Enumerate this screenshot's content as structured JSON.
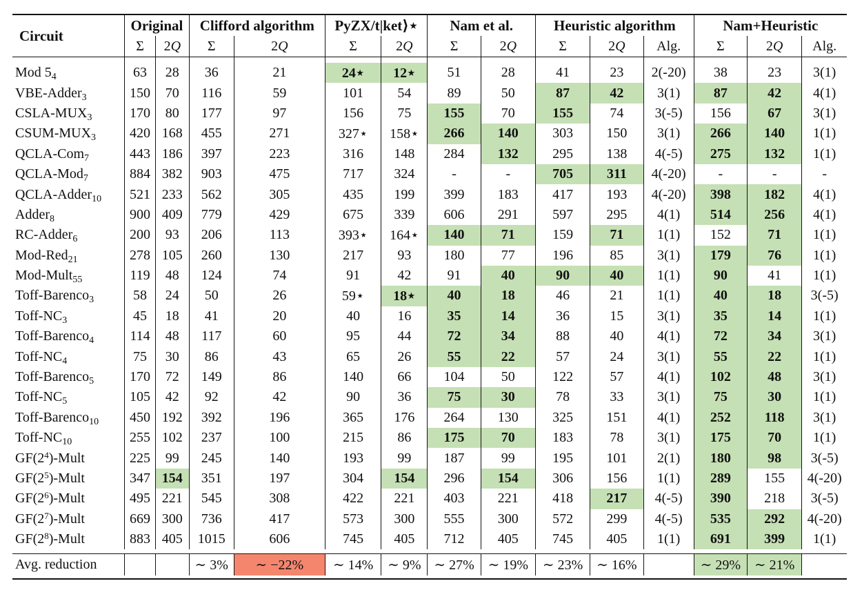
{
  "headers": {
    "circuit": "Circuit",
    "groups": [
      "Original",
      "Clifford algorithm",
      "PyZX/t|ket⟩⋆",
      "Nam et al.",
      "Heuristic algorithm",
      "Nam+Heuristic"
    ],
    "sigma": "Σ",
    "two_q_num": "2",
    "two_q_q": "Q",
    "alg": "Alg."
  },
  "rows": [
    {
      "name": "Mod 5",
      "sub": "4",
      "vals": [
        "63",
        "28",
        "36",
        "21",
        "24⋆",
        "12⋆",
        "51",
        "28",
        "41",
        "23",
        "2(-20)",
        "38",
        "23",
        "3(1)"
      ],
      "hl": [
        4,
        5
      ],
      "bold": [
        4,
        5
      ]
    },
    {
      "name": "VBE-Adder",
      "sub": "3",
      "vals": [
        "150",
        "70",
        "116",
        "59",
        "101",
        "54",
        "89",
        "50",
        "87",
        "42",
        "3(1)",
        "87",
        "42",
        "4(1)"
      ],
      "hl": [
        8,
        9,
        11,
        12
      ],
      "bold": [
        8,
        9,
        11,
        12
      ]
    },
    {
      "name": "CSLA-MUX",
      "sub": "3",
      "vals": [
        "170",
        "80",
        "177",
        "97",
        "156",
        "75",
        "155",
        "70",
        "155",
        "74",
        "3(-5)",
        "156",
        "67",
        "3(1)"
      ],
      "hl": [
        6,
        8,
        12
      ],
      "bold": [
        6,
        8,
        12
      ]
    },
    {
      "name": "CSUM-MUX",
      "sub": "3",
      "vals": [
        "420",
        "168",
        "455",
        "271",
        "327⋆",
        "158⋆",
        "266",
        "140",
        "303",
        "150",
        "3(1)",
        "266",
        "140",
        "1(1)"
      ],
      "hl": [
        6,
        7,
        11,
        12
      ],
      "bold": [
        6,
        7,
        11,
        12
      ]
    },
    {
      "name": "QCLA-Com",
      "sub": "7",
      "vals": [
        "443",
        "186",
        "397",
        "223",
        "316",
        "148",
        "284",
        "132",
        "295",
        "138",
        "4(-5)",
        "275",
        "132",
        "1(1)"
      ],
      "hl": [
        7,
        11,
        12
      ],
      "bold": [
        7,
        11,
        12
      ]
    },
    {
      "name": "QCLA-Mod",
      "sub": "7",
      "vals": [
        "884",
        "382",
        "903",
        "475",
        "717",
        "324",
        "-",
        "-",
        "705",
        "311",
        "4(-20)",
        "-",
        "-",
        "-"
      ],
      "hl": [
        8,
        9
      ],
      "bold": [
        8,
        9
      ]
    },
    {
      "name": "QCLA-Adder",
      "sub": "10",
      "vals": [
        "521",
        "233",
        "562",
        "305",
        "435",
        "199",
        "399",
        "183",
        "417",
        "193",
        "4(-20)",
        "398",
        "182",
        "4(1)"
      ],
      "hl": [
        11,
        12
      ],
      "bold": [
        11,
        12
      ]
    },
    {
      "name": "Adder",
      "sub": "8",
      "vals": [
        "900",
        "409",
        "779",
        "429",
        "675",
        "339",
        "606",
        "291",
        "597",
        "295",
        "4(1)",
        "514",
        "256",
        "4(1)"
      ],
      "hl": [
        11,
        12
      ],
      "bold": [
        11,
        12
      ]
    },
    {
      "name": "RC-Adder",
      "sub": "6",
      "vals": [
        "200",
        "93",
        "206",
        "113",
        "393⋆",
        "164⋆",
        "140",
        "71",
        "159",
        "71",
        "1(1)",
        "152",
        "71",
        "1(1)"
      ],
      "hl": [
        6,
        7,
        9,
        12
      ],
      "bold": [
        6,
        7,
        9,
        12
      ]
    },
    {
      "name": "Mod-Red",
      "sub": "21",
      "vals": [
        "278",
        "105",
        "260",
        "130",
        "217",
        "93",
        "180",
        "77",
        "196",
        "85",
        "3(1)",
        "179",
        "76",
        "1(1)"
      ],
      "hl": [
        11,
        12
      ],
      "bold": [
        11,
        12
      ]
    },
    {
      "name": "Mod-Mult",
      "sub": "55",
      "vals": [
        "119",
        "48",
        "124",
        "74",
        "91",
        "42",
        "91",
        "40",
        "90",
        "40",
        "1(1)",
        "90",
        "41",
        "1(1)"
      ],
      "hl": [
        7,
        8,
        9,
        11
      ],
      "bold": [
        7,
        8,
        9,
        11
      ]
    },
    {
      "name": "Toff-Barenco",
      "sub": "3",
      "vals": [
        "58",
        "24",
        "50",
        "26",
        "59⋆",
        "18⋆",
        "40",
        "18",
        "46",
        "21",
        "1(1)",
        "40",
        "18",
        "3(-5)"
      ],
      "hl": [
        5,
        6,
        7,
        11,
        12
      ],
      "bold": [
        5,
        6,
        7,
        11,
        12
      ]
    },
    {
      "name": "Toff-NC",
      "sub": "3",
      "vals": [
        "45",
        "18",
        "41",
        "20",
        "40",
        "16",
        "35",
        "14",
        "36",
        "15",
        "3(1)",
        "35",
        "14",
        "1(1)"
      ],
      "hl": [
        6,
        7,
        11,
        12
      ],
      "bold": [
        6,
        7,
        11,
        12
      ]
    },
    {
      "name": "Toff-Barenco",
      "sub": "4",
      "vals": [
        "114",
        "48",
        "117",
        "60",
        "95",
        "44",
        "72",
        "34",
        "88",
        "40",
        "4(1)",
        "72",
        "34",
        "3(1)"
      ],
      "hl": [
        6,
        7,
        11,
        12
      ],
      "bold": [
        6,
        7,
        11,
        12
      ]
    },
    {
      "name": "Toff-NC",
      "sub": "4",
      "vals": [
        "75",
        "30",
        "86",
        "43",
        "65",
        "26",
        "55",
        "22",
        "57",
        "24",
        "3(1)",
        "55",
        "22",
        "1(1)"
      ],
      "hl": [
        6,
        7,
        11,
        12
      ],
      "bold": [
        6,
        7,
        11,
        12
      ]
    },
    {
      "name": "Toff-Barenco",
      "sub": "5",
      "vals": [
        "170",
        "72",
        "149",
        "86",
        "140",
        "66",
        "104",
        "50",
        "122",
        "57",
        "4(1)",
        "102",
        "48",
        "3(1)"
      ],
      "hl": [
        11,
        12
      ],
      "bold": [
        11,
        12
      ]
    },
    {
      "name": "Toff-NC",
      "sub": "5",
      "vals": [
        "105",
        "42",
        "92",
        "42",
        "90",
        "36",
        "75",
        "30",
        "78",
        "33",
        "3(1)",
        "75",
        "30",
        "1(1)"
      ],
      "hl": [
        6,
        7,
        11,
        12
      ],
      "bold": [
        6,
        7,
        11,
        12
      ]
    },
    {
      "name": "Toff-Barenco",
      "sub": "10",
      "vals": [
        "450",
        "192",
        "392",
        "196",
        "365",
        "176",
        "264",
        "130",
        "325",
        "151",
        "4(1)",
        "252",
        "118",
        "3(1)"
      ],
      "hl": [
        11,
        12
      ],
      "bold": [
        11,
        12
      ]
    },
    {
      "name": "Toff-NC",
      "sub": "10",
      "vals": [
        "255",
        "102",
        "237",
        "100",
        "215",
        "86",
        "175",
        "70",
        "183",
        "78",
        "3(1)",
        "175",
        "70",
        "1(1)"
      ],
      "hl": [
        6,
        7,
        11,
        12
      ],
      "bold": [
        6,
        7,
        11,
        12
      ]
    },
    {
      "name": "GF(2",
      "sup": "4",
      "tail": ")-Mult",
      "vals": [
        "225",
        "99",
        "245",
        "140",
        "193",
        "99",
        "187",
        "99",
        "195",
        "101",
        "2(1)",
        "180",
        "98",
        "3(-5)"
      ],
      "hl": [
        11,
        12
      ],
      "bold": [
        11,
        12
      ]
    },
    {
      "name": "GF(2",
      "sup": "5",
      "tail": ")-Mult",
      "vals": [
        "347",
        "154",
        "351",
        "197",
        "304",
        "154",
        "296",
        "154",
        "306",
        "156",
        "1(1)",
        "289",
        "155",
        "4(-20)"
      ],
      "hl": [
        1,
        5,
        7,
        11
      ],
      "bold": [
        1,
        5,
        7,
        11
      ]
    },
    {
      "name": "GF(2",
      "sup": "6",
      "tail": ")-Mult",
      "vals": [
        "495",
        "221",
        "545",
        "308",
        "422",
        "221",
        "403",
        "221",
        "418",
        "217",
        "4(-5)",
        "390",
        "218",
        "3(-5)"
      ],
      "hl": [
        9,
        11
      ],
      "bold": [
        9,
        11
      ]
    },
    {
      "name": "GF(2",
      "sup": "7",
      "tail": ")-Mult",
      "vals": [
        "669",
        "300",
        "736",
        "417",
        "573",
        "300",
        "555",
        "300",
        "572",
        "299",
        "4(-5)",
        "535",
        "292",
        "4(-20)"
      ],
      "hl": [
        11,
        12
      ],
      "bold": [
        11,
        12
      ]
    },
    {
      "name": "GF(2",
      "sup": "8",
      "tail": ")-Mult",
      "vals": [
        "883",
        "405",
        "1015",
        "606",
        "745",
        "405",
        "712",
        "405",
        "745",
        "405",
        "1(1)",
        "691",
        "399",
        "1(1)"
      ],
      "hl": [
        11,
        12
      ],
      "bold": [
        11,
        12
      ]
    }
  ],
  "avg": {
    "label": "Avg. reduction",
    "vals": [
      "",
      "",
      "∼ 3%",
      "∼ −22%",
      "∼ 14%",
      "∼ 9%",
      "∼ 27%",
      "∼ 19%",
      "∼ 23%",
      "∼ 16%",
      "",
      "∼ 29%",
      "∼ 21%",
      ""
    ],
    "neg": [
      3
    ],
    "hl": [
      11,
      12
    ]
  },
  "colors": {
    "highlight": "#c5e0b4",
    "negative": "#f4866e"
  }
}
